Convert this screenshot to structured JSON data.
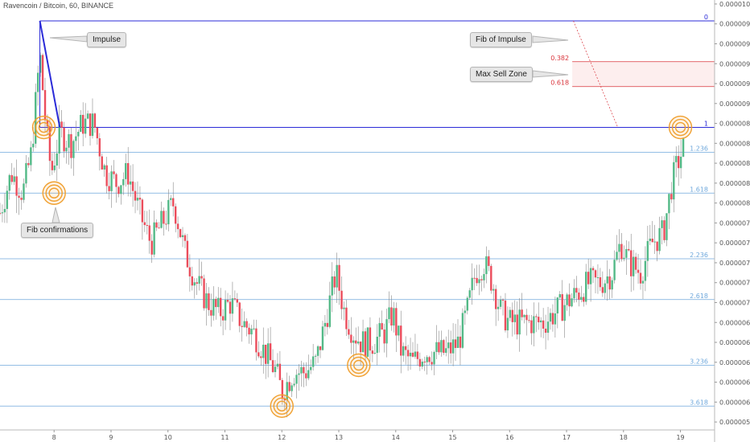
{
  "header": {
    "title": "Ravencoin / Bitcoin, 60, BINANCE"
  },
  "callouts": {
    "impulse": "Impulse",
    "fib_confirmations": "Fib confirmations",
    "fib_of_impulse": "Fib of Impulse",
    "max_sell_zone": "Max Sell Zone"
  },
  "colors": {
    "up": "#53b987",
    "down": "#eb4d5c",
    "fib_main": "#2b2bd8",
    "fib_ext": "#6fa8dc",
    "retrace": "#d9343b",
    "zone": "#fdeeee",
    "circle": "#f0a030"
  },
  "chart_data": {
    "type": "candlestick",
    "title": "Ravencoin / Bitcoin, 60, BINANCE",
    "x_ticks": [
      "8",
      "9",
      "10",
      "11",
      "12",
      "13",
      "14",
      "15",
      "16",
      "17",
      "18",
      "19"
    ],
    "y_ticks": [
      "0.00000580",
      "0.00000600",
      "0.00000620",
      "0.00000640",
      "0.00000660",
      "0.00000680",
      "0.00000700",
      "0.00000720",
      "0.00000740",
      "0.00000760",
      "0.00000780",
      "0.00000800",
      "0.00000820",
      "0.00000840",
      "0.00000860",
      "0.00000880",
      "0.00000900",
      "0.00000920",
      "0.00000940",
      "0.00000960",
      "0.00000980",
      "0.00001000"
    ],
    "ylim": [
      5.72e-06,
      1.004e-05
    ],
    "xlim": [
      7.05,
      19.6
    ],
    "fib_extension_levels": [
      {
        "label": "0",
        "value": 9.83e-06
      },
      {
        "label": "1",
        "value": 8.76e-06
      },
      {
        "label": "1.236",
        "value": 8.51e-06
      },
      {
        "label": "1.618",
        "value": 8.1e-06
      },
      {
        "label": "2.236",
        "value": 7.44e-06
      },
      {
        "label": "2.618",
        "value": 7.03e-06
      },
      {
        "label": "3.236",
        "value": 6.37e-06
      },
      {
        "label": "3.618",
        "value": 5.96e-06
      }
    ],
    "retracement_levels": [
      {
        "label": "0.382",
        "value": 9.42e-06
      },
      {
        "label": "0.618",
        "value": 9.17e-06
      }
    ],
    "impulse_line": {
      "from": [
        7.75,
        9.83e-06
      ],
      "to": [
        8.1,
        8.76e-06
      ]
    },
    "fib_circles": [
      {
        "x": 7.82,
        "y": 8.76e-06
      },
      {
        "x": 8.0,
        "y": 8.1e-06
      },
      {
        "x": 12.0,
        "y": 5.96e-06
      },
      {
        "x": 13.35,
        "y": 6.37e-06
      },
      {
        "x": 19.0,
        "y": 8.76e-06
      }
    ],
    "price_path": [
      [
        7.05,
        7.9e-06
      ],
      [
        7.25,
        8.3e-06
      ],
      [
        7.45,
        8.1e-06
      ],
      [
        7.6,
        8.5e-06
      ],
      [
        7.75,
        9.5e-06
      ],
      [
        7.85,
        8.8e-06
      ],
      [
        7.95,
        8.3e-06
      ],
      [
        8.1,
        8.7e-06
      ],
      [
        8.3,
        8.6e-06
      ],
      [
        8.5,
        8.8e-06
      ],
      [
        8.7,
        8.8e-06
      ],
      [
        8.9,
        8.3e-06
      ],
      [
        9.1,
        8.2e-06
      ],
      [
        9.3,
        8.3e-06
      ],
      [
        9.5,
        7.9e-06
      ],
      [
        9.7,
        7.6e-06
      ],
      [
        9.9,
        7.8e-06
      ],
      [
        10.1,
        8e-06
      ],
      [
        10.3,
        7.5e-06
      ],
      [
        10.5,
        7.2e-06
      ],
      [
        10.7,
        7e-06
      ],
      [
        10.9,
        6.9e-06
      ],
      [
        11.1,
        7e-06
      ],
      [
        11.3,
        6.8e-06
      ],
      [
        11.5,
        6.7e-06
      ],
      [
        11.7,
        6.5e-06
      ],
      [
        11.9,
        6.3e-06
      ],
      [
        12.0,
        6.1e-06
      ],
      [
        12.2,
        6.3e-06
      ],
      [
        12.4,
        6.3e-06
      ],
      [
        12.6,
        6.4e-06
      ],
      [
        12.8,
        6.9e-06
      ],
      [
        12.95,
        7.3e-06
      ],
      [
        13.1,
        6.9e-06
      ],
      [
        13.25,
        6.7e-06
      ],
      [
        13.4,
        6.6e-06
      ],
      [
        13.6,
        6.6e-06
      ],
      [
        13.8,
        6.7e-06
      ],
      [
        13.95,
        6.9e-06
      ],
      [
        14.1,
        6.5e-06
      ],
      [
        14.3,
        6.4e-06
      ],
      [
        14.5,
        6.5e-06
      ],
      [
        14.7,
        6.5e-06
      ],
      [
        14.9,
        6.5e-06
      ],
      [
        15.1,
        6.6e-06
      ],
      [
        15.25,
        6.9e-06
      ],
      [
        15.4,
        7.3e-06
      ],
      [
        15.55,
        7.4e-06
      ],
      [
        15.7,
        7.2e-06
      ],
      [
        15.85,
        6.9e-06
      ],
      [
        16.0,
        6.8e-06
      ],
      [
        16.2,
        6.8e-06
      ],
      [
        16.4,
        6.8e-06
      ],
      [
        16.6,
        6.8e-06
      ],
      [
        16.8,
        6.9e-06
      ],
      [
        17.0,
        7e-06
      ],
      [
        17.2,
        7.1e-06
      ],
      [
        17.4,
        7.2e-06
      ],
      [
        17.6,
        7.2e-06
      ],
      [
        17.8,
        7.3e-06
      ],
      [
        17.95,
        7.6e-06
      ],
      [
        18.1,
        7.4e-06
      ],
      [
        18.3,
        7.3e-06
      ],
      [
        18.5,
        7.6e-06
      ],
      [
        18.7,
        7.7e-06
      ],
      [
        18.85,
        8.2e-06
      ],
      [
        18.95,
        8.4e-06
      ],
      [
        19.05,
        8.55e-06
      ]
    ]
  }
}
